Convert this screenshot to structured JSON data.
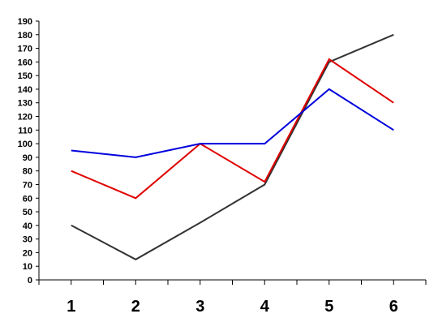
{
  "chart_data": {
    "type": "line",
    "title": "",
    "xlabel": "",
    "ylabel": "",
    "x": [
      "1",
      "2",
      "3",
      "4",
      "5",
      "6"
    ],
    "ylim": [
      0,
      190
    ],
    "ytick_step": 10,
    "grid": false,
    "legend": "none",
    "series": [
      {
        "color": "#333333",
        "values": [
          40,
          15,
          42,
          70,
          160,
          180
        ]
      },
      {
        "color": "#e00000",
        "values": [
          80,
          60,
          100,
          72,
          162,
          130
        ]
      },
      {
        "color": "#0000dd",
        "values": [
          95,
          90,
          100,
          100,
          140,
          110
        ]
      }
    ]
  }
}
